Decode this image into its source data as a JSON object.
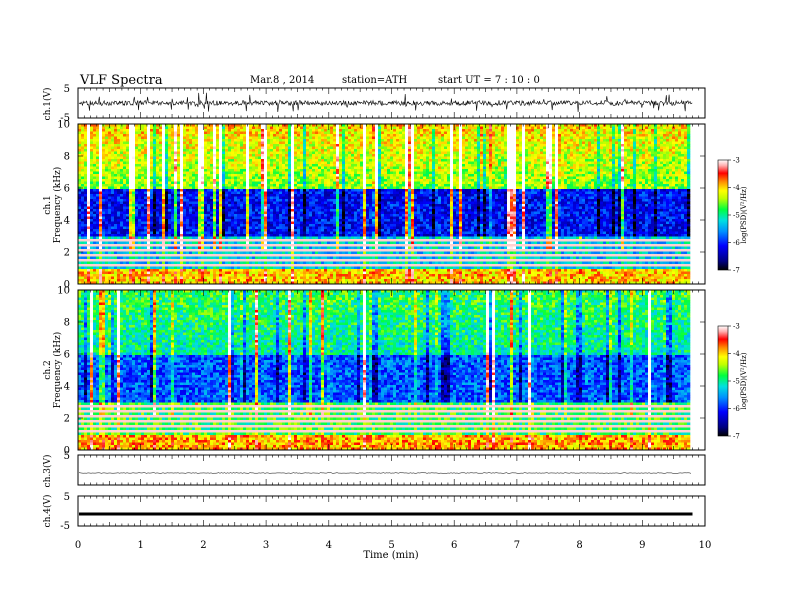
{
  "header": {
    "title": "VLF  Spectra",
    "date": "Mar.8  , 2014",
    "station": "station=ATH",
    "start": "start  UT  =   7  : 10 : 0"
  },
  "chart_data": [
    {
      "type": "line",
      "panel": "ch1-waveform",
      "ylabel": "ch.1(V)",
      "yticks": [
        "5",
        "-5"
      ],
      "ylim": [
        -5,
        5
      ],
      "xlim": [
        0,
        10
      ],
      "data_extent_min": 9.8,
      "series": [
        {
          "values_description_baseline": 0.0
        }
      ]
    },
    {
      "type": "heatmap",
      "panel": "ch1-spectrogram",
      "ylabel_1": "ch.1",
      "ylabel_2": "Frequency (kHz)",
      "yticks": [
        "0",
        "2",
        "4",
        "6",
        "8",
        "10"
      ],
      "ylim": [
        0,
        10
      ],
      "xlim": [
        0,
        10
      ],
      "colorbar": {
        "label": "log(PSD)(V²/Hz)",
        "ticks": [
          "-3",
          "-4",
          "-5",
          "-6",
          "-7"
        ],
        "range": [
          -7,
          -3
        ]
      }
    },
    {
      "type": "heatmap",
      "panel": "ch2-spectrogram",
      "ylabel_1": "ch.2",
      "ylabel_2": "Frequency (kHz)",
      "yticks": [
        "0",
        "2",
        "4",
        "6",
        "8",
        "10"
      ],
      "ylim": [
        0,
        10
      ],
      "xlim": [
        0,
        10
      ],
      "colorbar": {
        "label": "log(PSD)(V²/Hz)",
        "ticks": [
          "-3",
          "-4",
          "-5",
          "-6",
          "-7"
        ],
        "range": [
          -7,
          -3
        ]
      }
    },
    {
      "type": "line",
      "panel": "ch3-waveform",
      "ylabel": "ch.3(V)",
      "yticks": [
        "5"
      ],
      "ylim": [
        -5,
        5
      ],
      "xlim": [
        0,
        10
      ],
      "baseline": -1
    },
    {
      "type": "line",
      "panel": "ch4-waveform",
      "ylabel": "ch.4(V)",
      "yticks": [
        "5",
        "-5"
      ],
      "ylim": [
        -5,
        5
      ],
      "xlim": [
        0,
        10
      ],
      "baseline": -1
    }
  ],
  "xaxis": {
    "label": "Time  (min)",
    "ticks": [
      "0",
      "1",
      "2",
      "3",
      "4",
      "5",
      "6",
      "7",
      "8",
      "9",
      "10"
    ]
  },
  "colors": {
    "scale": [
      "#000080",
      "#0000ff",
      "#0080ff",
      "#00e0e0",
      "#00ff40",
      "#ffff00",
      "#ff8000",
      "#ff0000",
      "#ffb0b0",
      "#ffffff"
    ]
  }
}
